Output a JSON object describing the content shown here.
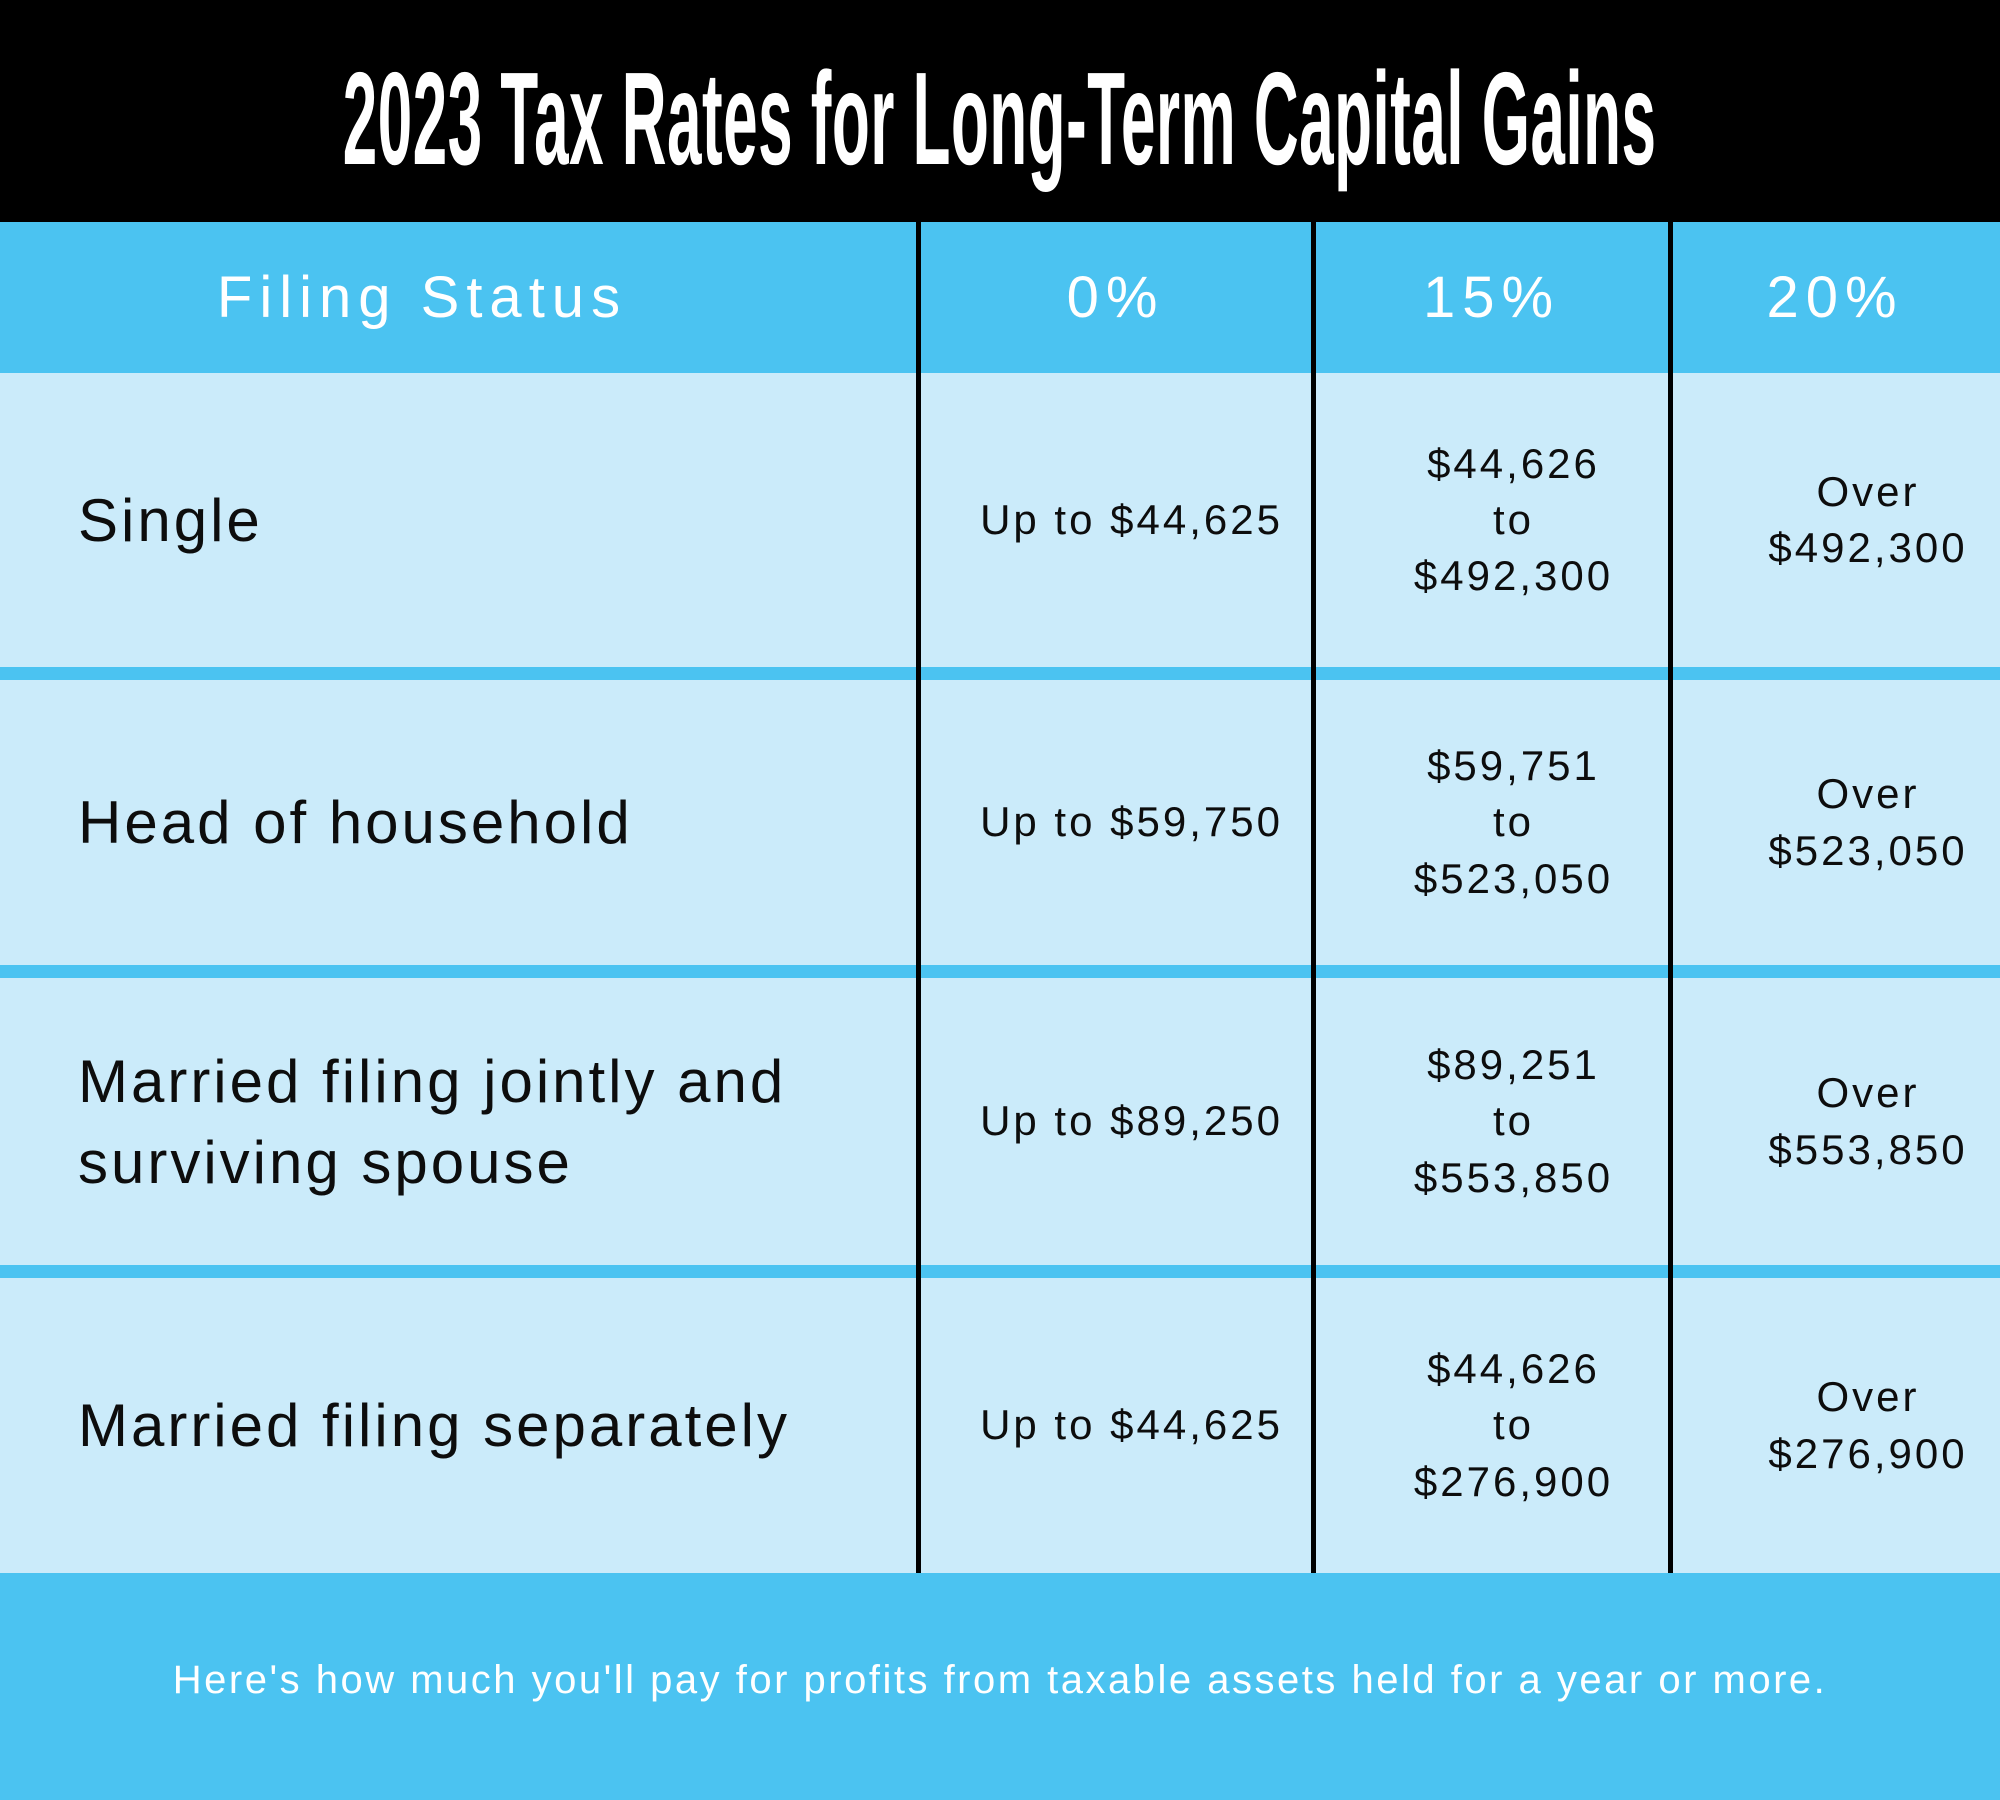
{
  "title": "2023 Tax Rates for Long-Term Capital Gains",
  "chart_data": {
    "type": "table",
    "title": "2023 Tax Rates for Long-Term Capital Gains",
    "columns": [
      "Filing Status",
      "0%",
      "15%",
      "20%"
    ],
    "rows": [
      [
        "Single",
        "Up to $44,625",
        "$44,626 to $492,300",
        "Over $492,300"
      ],
      [
        "Head of household",
        "Up to $59,750",
        "$59,751 to $523,050",
        "Over $523,050"
      ],
      [
        "Married filing jointly and surviving spouse",
        "Up to $89,250",
        "$89,251 to $553,850",
        "Over $553,850"
      ],
      [
        "Married filing separately",
        "Up to $44,625",
        "$44,626 to $276,900",
        "Over $276,900"
      ]
    ],
    "caption": "Here's how much you'll pay for profits from taxable assets held for a year or more."
  },
  "table": {
    "columns": [
      "Filing Status",
      "0%",
      "15%",
      "20%"
    ],
    "rows": [
      {
        "label_lines": [
          "Single"
        ],
        "rate0": "Up to $44,625",
        "rate15_lines": [
          "$44,626",
          "to",
          "$492,300"
        ],
        "rate20_lines": [
          "Over",
          "$492,300"
        ]
      },
      {
        "label_lines": [
          "Head of household"
        ],
        "rate0": "Up to $59,750",
        "rate15_lines": [
          "$59,751",
          "to",
          "$523,050"
        ],
        "rate20_lines": [
          "Over",
          "$523,050"
        ]
      },
      {
        "label_lines": [
          "Married filing jointly and",
          "surviving spouse"
        ],
        "rate0": "Up to $89,250",
        "rate15_lines": [
          "$89,251",
          "to",
          "$553,850"
        ],
        "rate20_lines": [
          "Over",
          "$553,850"
        ]
      },
      {
        "label_lines": [
          "Married filing separately"
        ],
        "rate0": "Up to $44,625",
        "rate15_lines": [
          "$44,626",
          "to",
          "$276,900"
        ],
        "rate20_lines": [
          "Over",
          "$276,900"
        ]
      }
    ]
  },
  "footer": {
    "note": "Here's how much you'll pay for profits from taxable assets held for a year or more."
  },
  "colors": {
    "accent_blue": "#4BC3F1",
    "cell_light_blue": "#CBEBFA",
    "band_black": "#000000",
    "text_dark": "#0D0D0D",
    "text_white": "#FFFFFF"
  }
}
